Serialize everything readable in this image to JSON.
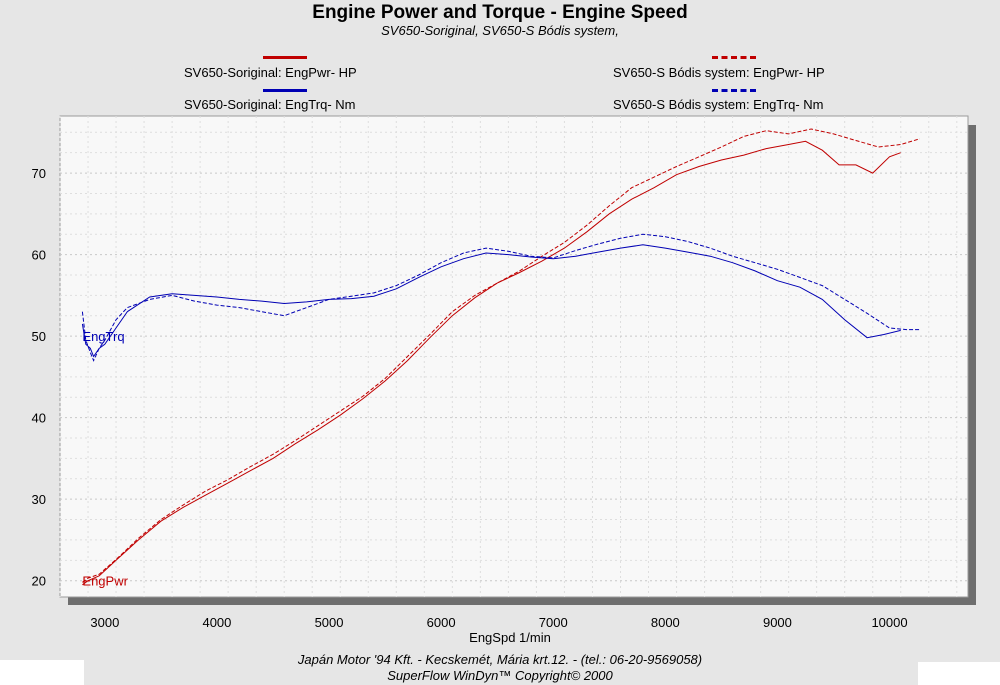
{
  "title": "Engine Power and Torque - Engine Speed",
  "subtitle": "SV650-Soriginal, SV650-S Bódis system,",
  "legend": [
    {
      "label": "SV650-Soriginal: EngPwr-  HP",
      "color": "#c00000",
      "style": "solid"
    },
    {
      "label": "SV650-S Bódis system: EngPwr-  HP",
      "color": "#c00000",
      "style": "dashed"
    },
    {
      "label": "SV650-Soriginal: EngTrq-  Nm",
      "color": "#0000b4",
      "style": "solid"
    },
    {
      "label": "SV650-S Bódis system: EngTrq-  Nm",
      "color": "#0000b4",
      "style": "dashed"
    }
  ],
  "footer": {
    "line1": "Japán Motor '94 Kft.  -  Kecskemét, Mária krt.12.  -  (tel.: 06-20-9569058)",
    "line2": "SuperFlow WinDyn™  Copyright© 2000"
  },
  "chart_data": {
    "type": "line",
    "title": "Engine Power and Torque - Engine Speed",
    "subtitle": "SV650-Soriginal, SV650-S Bódis system,",
    "xlabel": "EngSpd 1/min",
    "ylabel": "",
    "xlim": [
      2600,
      10700
    ],
    "ylim": [
      18,
      77
    ],
    "xticks": [
      3000,
      4000,
      5000,
      6000,
      7000,
      8000,
      9000,
      10000
    ],
    "yticks": [
      20,
      30,
      40,
      50,
      60,
      70
    ],
    "grid": true,
    "annotations": [
      {
        "text": "EngTrq",
        "x": 2800,
        "y": 50,
        "color": "#0000b4"
      },
      {
        "text": "EngPwr",
        "x": 2800,
        "y": 20,
        "color": "#c00000"
      }
    ],
    "series": [
      {
        "name": "SV650-Soriginal: EngPwr-  HP",
        "color": "#c00000",
        "style": "solid",
        "x": [
          2800,
          2850,
          2950,
          3100,
          3300,
          3500,
          3700,
          3900,
          4100,
          4300,
          4500,
          4700,
          4900,
          5100,
          5300,
          5500,
          5700,
          5900,
          6100,
          6300,
          6500,
          6700,
          6900,
          7100,
          7300,
          7500,
          7700,
          7900,
          8100,
          8300,
          8500,
          8700,
          8900,
          9100,
          9250,
          9400,
          9550,
          9700,
          9850,
          10000,
          10100
        ],
        "y": [
          19.5,
          20.0,
          20.6,
          22.5,
          25.0,
          27.3,
          29.0,
          30.5,
          32.0,
          33.5,
          35.0,
          36.8,
          38.5,
          40.3,
          42.3,
          44.5,
          47.0,
          49.8,
          52.5,
          54.7,
          56.5,
          57.8,
          59.2,
          60.8,
          62.8,
          65.0,
          66.8,
          68.2,
          69.8,
          70.8,
          71.6,
          72.2,
          73.0,
          73.5,
          73.9,
          72.8,
          71.0,
          71.0,
          70.0,
          72.0,
          72.5
        ]
      },
      {
        "name": "SV650-S Bódis system: EngPwr-  HP",
        "color": "#c00000",
        "style": "dashed",
        "x": [
          2800,
          2850,
          2950,
          3100,
          3300,
          3500,
          3700,
          3900,
          4100,
          4300,
          4500,
          4700,
          4900,
          5100,
          5300,
          5500,
          5700,
          5900,
          6100,
          6300,
          6500,
          6700,
          6900,
          7100,
          7300,
          7500,
          7700,
          7900,
          8100,
          8300,
          8500,
          8700,
          8900,
          9100,
          9300,
          9500,
          9700,
          9900,
          10100,
          10270
        ],
        "y": [
          19.8,
          20.3,
          20.8,
          22.6,
          25.2,
          27.5,
          29.3,
          31.0,
          32.4,
          34.0,
          35.5,
          37.2,
          39.0,
          40.8,
          42.6,
          44.8,
          47.5,
          50.2,
          53.0,
          55.0,
          56.5,
          58.0,
          59.8,
          61.5,
          63.6,
          66.0,
          68.2,
          69.5,
          70.8,
          72.0,
          73.2,
          74.5,
          75.2,
          74.8,
          75.4,
          74.8,
          74.0,
          73.2,
          73.5,
          74.2
        ]
      },
      {
        "name": "SV650-Soriginal: EngTrq-  Nm",
        "color": "#0000b4",
        "style": "solid",
        "x": [
          2800,
          2830,
          2870,
          2900,
          2950,
          3000,
          3100,
          3200,
          3400,
          3600,
          3800,
          4000,
          4200,
          4400,
          4600,
          4800,
          5000,
          5200,
          5400,
          5600,
          5800,
          6000,
          6200,
          6400,
          6600,
          6800,
          7000,
          7200,
          7400,
          7600,
          7800,
          8000,
          8200,
          8400,
          8600,
          8800,
          9000,
          9200,
          9400,
          9600,
          9800,
          9950,
          10100
        ],
        "y": [
          51.5,
          49.0,
          48.5,
          47.5,
          48.5,
          49.0,
          51.0,
          53.0,
          54.8,
          55.2,
          55.0,
          54.8,
          54.5,
          54.3,
          54.0,
          54.2,
          54.5,
          54.6,
          54.9,
          55.8,
          57.2,
          58.5,
          59.5,
          60.2,
          60.0,
          59.7,
          59.5,
          59.8,
          60.3,
          60.8,
          61.2,
          60.8,
          60.3,
          59.8,
          59.0,
          58.0,
          56.8,
          56.0,
          54.5,
          52.0,
          49.8,
          50.2,
          50.7
        ]
      },
      {
        "name": "SV650-S Bódis system: EngTrq-  Nm",
        "color": "#0000b4",
        "style": "dashed",
        "x": [
          2800,
          2830,
          2870,
          2900,
          2950,
          3000,
          3100,
          3200,
          3400,
          3600,
          3800,
          4000,
          4200,
          4400,
          4600,
          4800,
          5000,
          5200,
          5400,
          5600,
          5800,
          6000,
          6200,
          6400,
          6600,
          6800,
          7000,
          7200,
          7400,
          7600,
          7800,
          8000,
          8200,
          8400,
          8600,
          8800,
          9000,
          9200,
          9400,
          9600,
          9800,
          10000,
          10150,
          10270
        ],
        "y": [
          53.0,
          49.5,
          48.0,
          47.0,
          48.5,
          49.5,
          52.0,
          53.5,
          54.5,
          55.0,
          54.3,
          53.8,
          53.5,
          53.0,
          52.5,
          53.5,
          54.5,
          54.9,
          55.3,
          56.2,
          57.5,
          59.0,
          60.2,
          60.8,
          60.4,
          59.8,
          59.6,
          60.5,
          61.3,
          62.0,
          62.5,
          62.2,
          61.6,
          60.8,
          59.8,
          59.0,
          58.2,
          57.2,
          56.2,
          54.5,
          52.8,
          51.0,
          50.8,
          50.8
        ]
      }
    ]
  }
}
